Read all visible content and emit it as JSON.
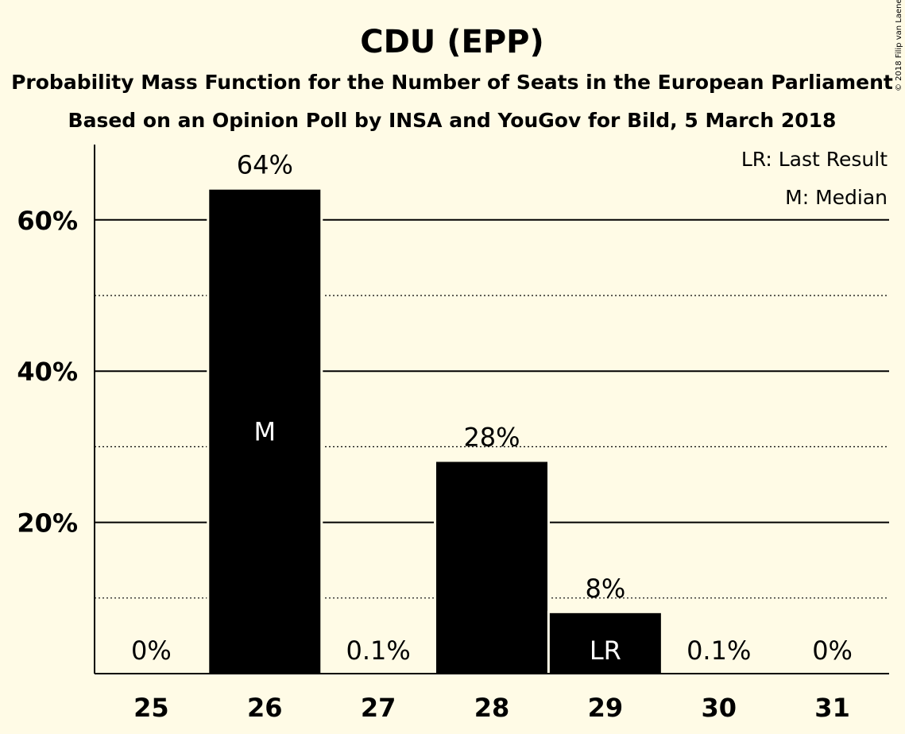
{
  "chart_data": {
    "type": "bar",
    "title": "CDU (EPP)",
    "subtitle_1": "Probability Mass Function for the Number of Seats in the European Parliament",
    "subtitle_2": "Based on an Opinion Poll by INSA and YouGov for Bild, 5 March 2018",
    "categories": [
      "25",
      "26",
      "27",
      "28",
      "29",
      "30",
      "31"
    ],
    "values": [
      0,
      64,
      0.1,
      28,
      8,
      0.1,
      0
    ],
    "value_labels": [
      "0%",
      "64%",
      "0.1%",
      "28%",
      "8%",
      "0.1%",
      "0%"
    ],
    "bar_markers": [
      "",
      "M",
      "",
      "",
      "LR",
      "",
      ""
    ],
    "ylim": [
      0,
      70
    ],
    "y_ticks": [
      20,
      40,
      60
    ],
    "y_tick_labels": [
      "20%",
      "40%",
      "60%"
    ],
    "y_dotted_grid": [
      10,
      30,
      50
    ],
    "legend": [
      "LR: Last Result",
      "M: Median"
    ],
    "legend_position": "top-right",
    "colors": {
      "bar": "#000000",
      "background": "#fffbe6",
      "marker_text": "#ffffff"
    }
  },
  "copyright": "© 2018 Filip van Laenen"
}
